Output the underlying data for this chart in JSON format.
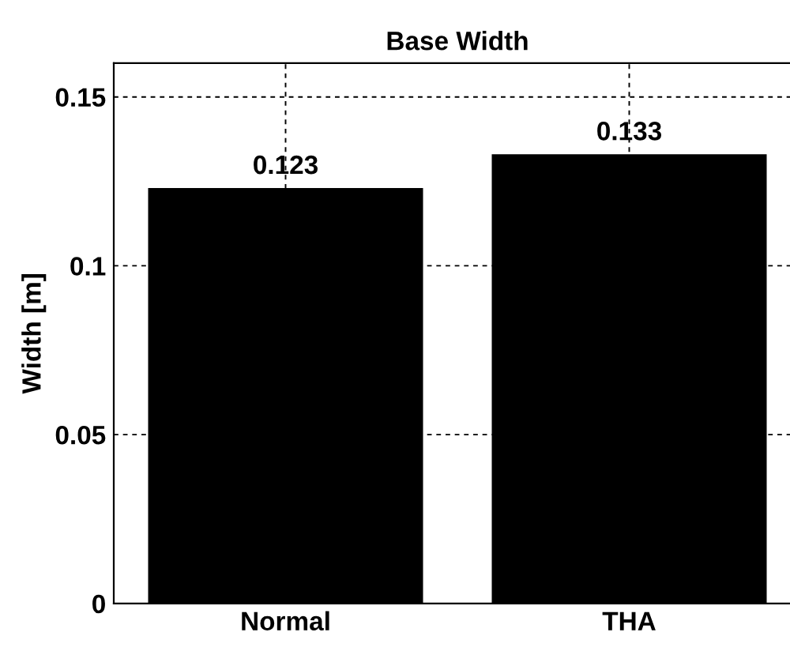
{
  "chart_data": {
    "type": "bar",
    "title": "Base Width",
    "ylabel": "Width [m]",
    "categories": [
      "Normal",
      "THA"
    ],
    "values": [
      0.123,
      0.133
    ],
    "color": "#000000",
    "ylim": [
      0,
      0.16
    ],
    "yticks": [
      0,
      0.05,
      0.1,
      0.15
    ],
    "grid": true,
    "data_labels": true
  }
}
